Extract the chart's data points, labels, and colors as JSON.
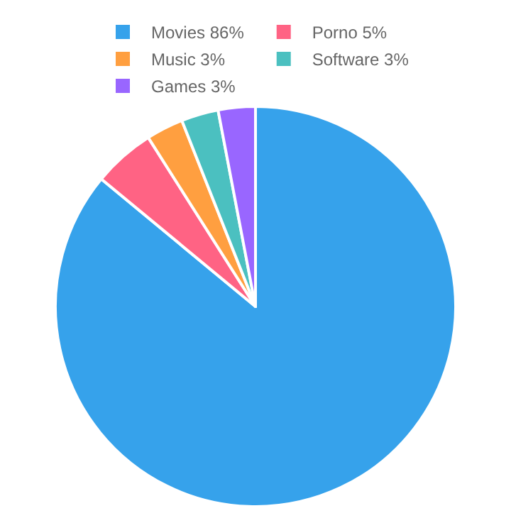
{
  "chart_data": {
    "type": "pie",
    "categories": [
      "Movies 86%",
      "Porno 5%",
      "Music 3%",
      "Software 3%",
      "Games 3%"
    ],
    "values": [
      86,
      5,
      3,
      3,
      3
    ],
    "colors": [
      "#36a2eb",
      "#ff6384",
      "#ff9f40",
      "#4bc0c0",
      "#9966ff"
    ],
    "legend": "top"
  }
}
